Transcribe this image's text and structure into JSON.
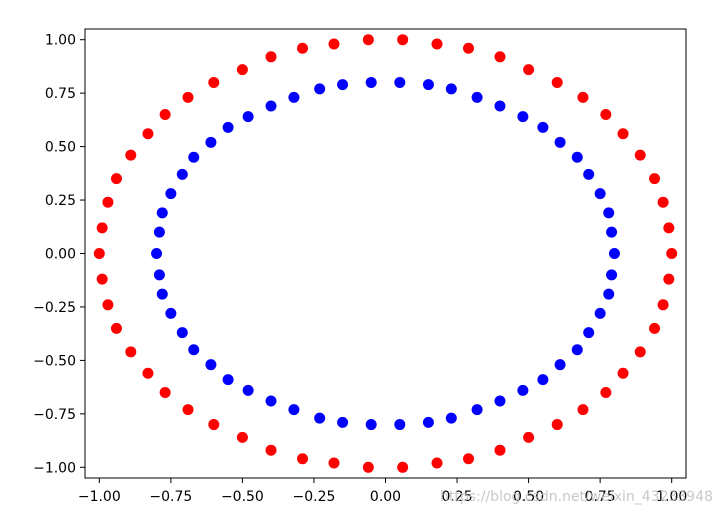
{
  "chart_data": {
    "type": "scatter",
    "title": "",
    "xlabel": "",
    "ylabel": "",
    "xlim": [
      -1.05,
      1.05
    ],
    "ylim": [
      -1.05,
      1.05
    ],
    "grid": false,
    "x_ticks": [
      -1.0,
      -0.75,
      -0.5,
      -0.25,
      0.0,
      0.25,
      0.5,
      0.75,
      1.0
    ],
    "x_tick_labels": [
      "−1.00",
      "−0.75",
      "−0.50",
      "−0.25",
      "0.00",
      "0.25",
      "0.50",
      "0.75",
      "1.00"
    ],
    "y_ticks": [
      1.0,
      0.75,
      0.5,
      0.25,
      0.0,
      -0.25,
      -0.5,
      -0.75,
      -1.0
    ],
    "y_tick_labels": [
      "1.00",
      "0.75",
      "0.50",
      "0.25",
      "0.00",
      "−0.25",
      "−0.50",
      "−0.75",
      "−1.00"
    ],
    "series": [
      {
        "color": "#ff0000",
        "x": [
          1.0,
          0.99,
          0.97,
          0.94,
          0.89,
          0.83,
          0.77,
          0.69,
          0.6,
          0.5,
          0.4,
          0.29,
          0.18,
          0.06,
          -0.06,
          -0.18,
          -0.29,
          -0.4,
          -0.5,
          -0.6,
          -0.69,
          -0.77,
          -0.83,
          -0.89,
          -0.94,
          -0.97,
          -0.99,
          -1.0,
          -0.99,
          -0.97,
          -0.94,
          -0.89,
          -0.83,
          -0.77,
          -0.69,
          -0.6,
          -0.5,
          -0.4,
          -0.29,
          -0.18,
          -0.06,
          0.06,
          0.18,
          0.29,
          0.4,
          0.5,
          0.6,
          0.69,
          0.77,
          0.83,
          0.89,
          0.94,
          0.97,
          0.99
        ],
        "y": [
          0.0,
          0.12,
          0.24,
          0.35,
          0.46,
          0.56,
          0.65,
          0.73,
          0.8,
          0.86,
          0.92,
          0.96,
          0.98,
          1.0,
          1.0,
          0.98,
          0.96,
          0.92,
          0.86,
          0.8,
          0.73,
          0.65,
          0.56,
          0.46,
          0.35,
          0.24,
          0.12,
          0.0,
          -0.12,
          -0.24,
          -0.35,
          -0.46,
          -0.56,
          -0.65,
          -0.73,
          -0.8,
          -0.86,
          -0.92,
          -0.96,
          -0.98,
          -1.0,
          -1.0,
          -0.98,
          -0.96,
          -0.92,
          -0.86,
          -0.8,
          -0.73,
          -0.65,
          -0.56,
          -0.46,
          -0.35,
          -0.24,
          -0.12
        ]
      },
      {
        "color": "#0000ff",
        "x": [
          0.8,
          0.79,
          0.78,
          0.75,
          0.71,
          0.67,
          0.61,
          0.55,
          0.48,
          0.4,
          0.32,
          0.23,
          0.15,
          0.05,
          -0.05,
          -0.15,
          -0.23,
          -0.32,
          -0.4,
          -0.48,
          -0.55,
          -0.61,
          -0.67,
          -0.71,
          -0.75,
          -0.78,
          -0.79,
          -0.8,
          -0.79,
          -0.78,
          -0.75,
          -0.71,
          -0.67,
          -0.61,
          -0.55,
          -0.48,
          -0.4,
          -0.32,
          -0.23,
          -0.15,
          -0.05,
          0.05,
          0.15,
          0.23,
          0.32,
          0.4,
          0.48,
          0.55,
          0.61,
          0.67,
          0.71,
          0.75,
          0.78,
          0.79
        ],
        "y": [
          0.0,
          0.1,
          0.19,
          0.28,
          0.37,
          0.45,
          0.52,
          0.59,
          0.64,
          0.69,
          0.73,
          0.77,
          0.79,
          0.8,
          0.8,
          0.79,
          0.77,
          0.73,
          0.69,
          0.64,
          0.59,
          0.52,
          0.45,
          0.37,
          0.28,
          0.19,
          0.1,
          0.0,
          -0.1,
          -0.19,
          -0.28,
          -0.37,
          -0.45,
          -0.52,
          -0.59,
          -0.64,
          -0.69,
          -0.73,
          -0.77,
          -0.79,
          -0.8,
          -0.8,
          -0.79,
          -0.77,
          -0.73,
          -0.69,
          -0.64,
          -0.59,
          -0.52,
          -0.45,
          -0.37,
          -0.28,
          -0.19,
          -0.1
        ]
      }
    ]
  },
  "watermark": {
    "text": "https://blog.csdn.net/weixin_43233948"
  }
}
